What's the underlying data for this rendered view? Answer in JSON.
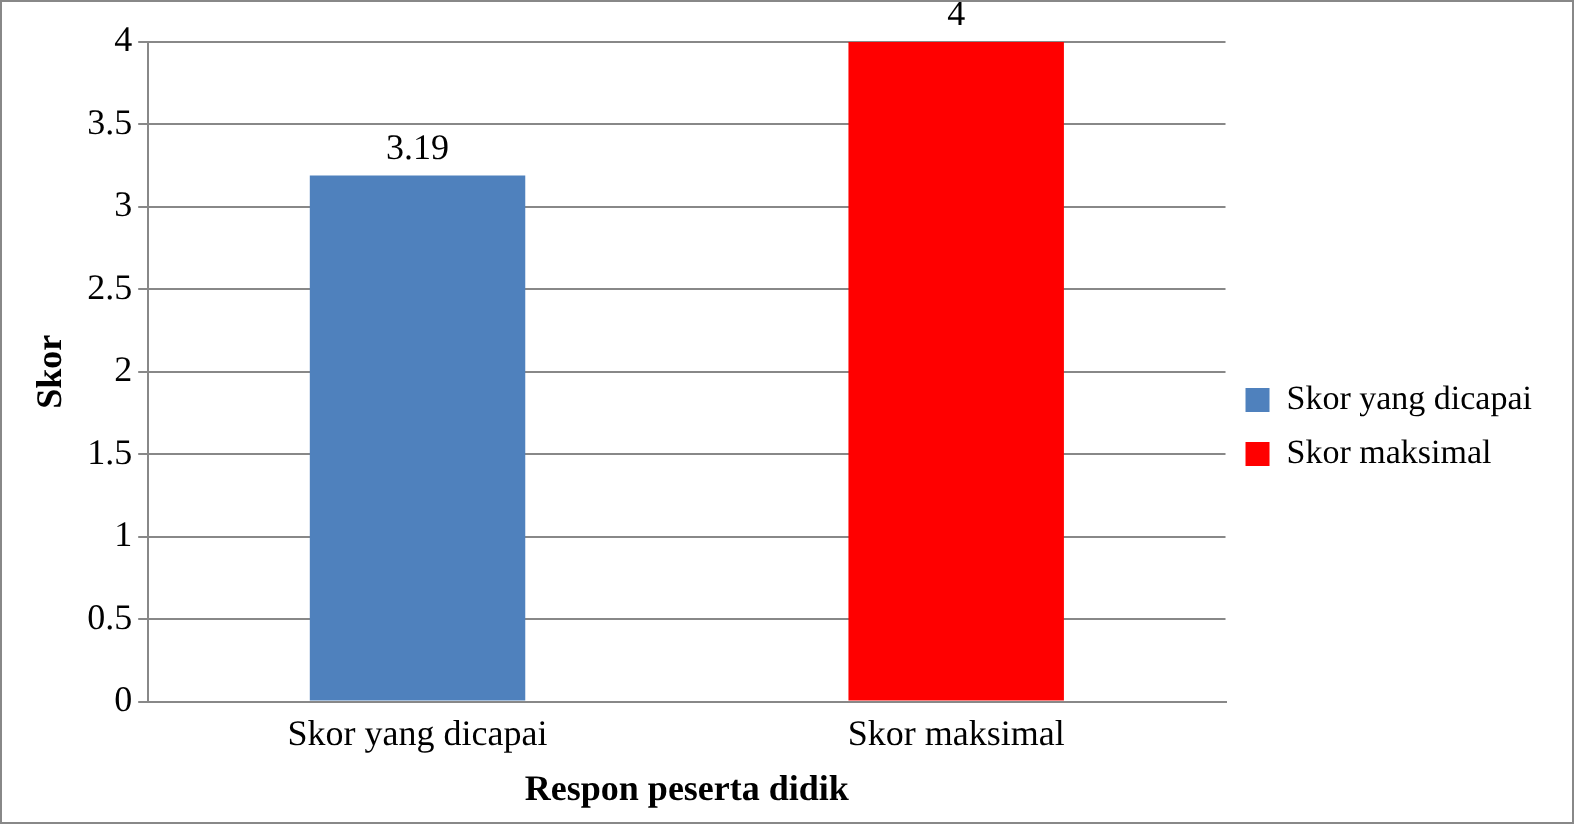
{
  "chart_data": {
    "type": "bar",
    "xlabel": "Respon peserta didik",
    "ylabel": "Skor",
    "categories": [
      "Skor yang dicapai",
      "Skor maksimal"
    ],
    "series": [
      {
        "name": "Skor yang dicapai",
        "color": "#4f81bd",
        "values": [
          3.19,
          null
        ]
      },
      {
        "name": "Skor maksimal",
        "color": "#ff0000",
        "values": [
          null,
          4
        ]
      }
    ],
    "ylim": [
      0,
      4
    ],
    "yticks": [
      0,
      0.5,
      1,
      1.5,
      2,
      2.5,
      3,
      3.5,
      4
    ],
    "grid": "y",
    "legend": "right",
    "data_labels": true
  }
}
